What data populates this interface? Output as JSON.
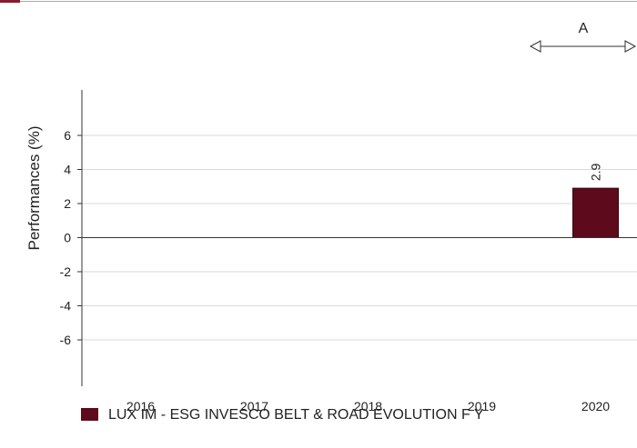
{
  "chart_data": {
    "type": "bar",
    "categories": [
      "2016",
      "2017",
      "2018",
      "2019",
      "2020"
    ],
    "series": [
      {
        "name": "LUX IM - ESG INVESCO BELT & ROAD EVOLUTION F Y",
        "values": [
          null,
          null,
          null,
          null,
          2.9
        ],
        "labels": [
          "",
          "",
          "",
          "",
          "2.9"
        ]
      }
    ],
    "ylabel": "Performances (%)",
    "xlabel": "",
    "ylim": [
      -9,
      9
    ],
    "yticks": [
      "6",
      "4",
      "2",
      "0",
      "-2",
      "-4",
      "-6"
    ],
    "ytick_values": [
      6,
      4,
      2,
      0,
      -2,
      -4,
      -6
    ],
    "grid": true,
    "legend_position": "bottom-left",
    "annotation": {
      "label": "A",
      "spans_category": "2020"
    }
  },
  "colors": {
    "bar": "#5c0a1c",
    "accent_top": "#8b1a2e",
    "grid": "#d9d9d9",
    "axis": "#333333",
    "top_rule": "#aaaaaa"
  }
}
